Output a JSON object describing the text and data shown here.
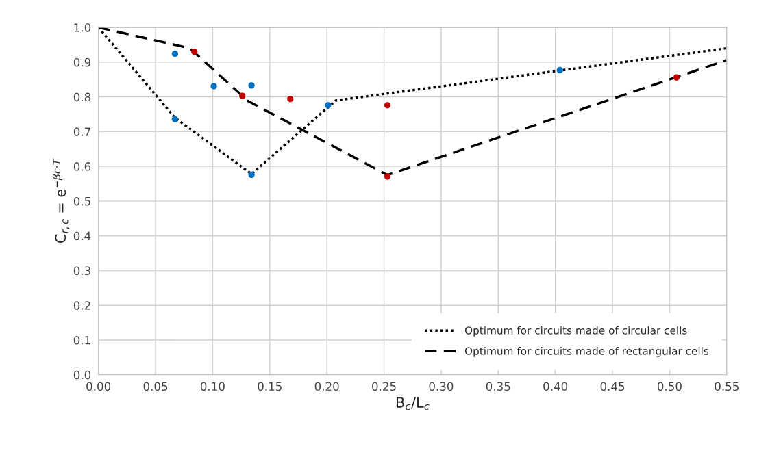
{
  "chart_data": {
    "type": "scatter",
    "xlabel": "B$_{c}$/L$_{c}$",
    "ylabel": "C$_{r,c}$ = e$^{−βc·T}$",
    "series": [
      {
        "type": "line",
        "name": "Optimum for circuits made of circular cells",
        "color": "#000000",
        "line_style": "dotted",
        "marker": "none",
        "x": [
          0.0,
          0.067,
          0.134,
          0.208,
          0.55
        ],
        "values": [
          1.0,
          0.74,
          0.578,
          0.79,
          0.94
        ]
      },
      {
        "type": "line",
        "name": "Optimum for circuits made of rectangular cells",
        "color": "#000000",
        "line_style": "dashed",
        "marker": "none",
        "x": [
          0.0,
          0.08,
          0.131,
          0.253,
          0.55
        ],
        "values": [
          1.0,
          0.94,
          0.788,
          0.575,
          0.906
        ]
      },
      {
        "color": "#0070c0",
        "marker": "circle",
        "x": [
          0.067,
          0.067,
          0.101,
          0.134,
          0.134,
          0.201,
          0.404
        ],
        "values": [
          0.924,
          0.736,
          0.831,
          0.833,
          0.576,
          0.776,
          0.877
        ]
      },
      {
        "color": "#c00000",
        "marker": "circle",
        "x": [
          0.084,
          0.126,
          0.168,
          0.253,
          0.253,
          0.506
        ],
        "values": [
          0.93,
          0.803,
          0.794,
          0.776,
          0.571,
          0.856
        ]
      }
    ],
    "xlim": [
      0.0,
      0.55
    ],
    "xticks": [
      {
        "value": 0.0,
        "label": "0.00"
      },
      0.05,
      {
        "value": 0.1,
        "label": "0.10"
      },
      0.15,
      {
        "value": 0.2,
        "label": "0.20"
      },
      0.25,
      {
        "value": 0.3,
        "label": "0.30"
      },
      0.35,
      {
        "value": 0.4,
        "label": "0.40"
      },
      0.45,
      {
        "value": 0.5,
        "label": "0.50"
      },
      0.55
    ],
    "ylim": [
      0.0,
      1.0
    ],
    "yticks": [
      {
        "value": 0.0,
        "label": "0.0"
      },
      0.1,
      0.2,
      0.3,
      0.4,
      0.5,
      0.6,
      0.7,
      0.8,
      0.9,
      {
        "value": 1.0,
        "label": "1.0"
      }
    ],
    "grid": true,
    "legend": "bottom right"
  }
}
